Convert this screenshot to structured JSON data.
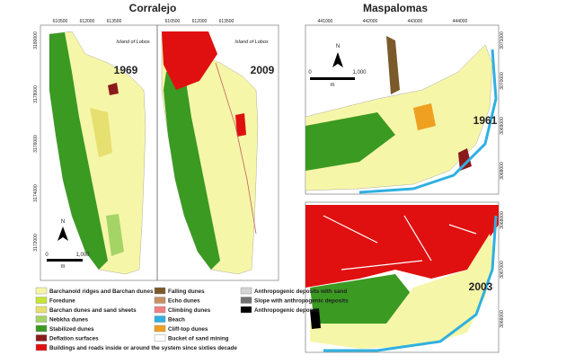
{
  "corralejo": {
    "title": "Corralejo",
    "x_ticks": [
      "610500",
      "612000",
      "613500"
    ],
    "y_ticks": [
      "3180000",
      "3178000",
      "3176000",
      "3174000",
      "3172000"
    ],
    "island_label": "Island of Lobos",
    "years": [
      "1969",
      "2009"
    ],
    "scale": {
      "start": "0",
      "end": "1,000",
      "unit": "m"
    },
    "north": "N"
  },
  "maspalomas": {
    "title": "Maspalomas",
    "x_ticks": [
      "441000",
      "442000",
      "443000",
      "444000"
    ],
    "y_ticks_top": [
      "3071000",
      "3070000",
      "3069000",
      "3068000"
    ],
    "y_ticks_bottom": [
      "3068000",
      "3067000",
      "3066000"
    ],
    "years": [
      "1961",
      "2003"
    ],
    "scale": {
      "start": "0",
      "end": "1,000",
      "unit": "m"
    },
    "north": "N"
  },
  "legend": [
    {
      "label": "Barchanoid ridges and Barchan dunes",
      "color": "#f6f6a8"
    },
    {
      "label": "Foredune",
      "color": "#c6e634"
    },
    {
      "label": "Barchan dunes and sand sheets",
      "color": "#e6e070"
    },
    {
      "label": "Nebkha dunes",
      "color": "#a4d466"
    },
    {
      "label": "Stabilized dunes",
      "color": "#3a9a22"
    },
    {
      "label": "Deflation surfaces",
      "color": "#8b1a1a"
    },
    {
      "label": "Buildings and roads inside or around the system since sixties decade",
      "color": "#e01010"
    },
    {
      "label": "Falling dunes",
      "color": "#7a5a2a"
    },
    {
      "label": "Echo dunes",
      "color": "#c89060"
    },
    {
      "label": "Climbing dunes",
      "color": "#f08080"
    },
    {
      "label": "Beach",
      "color": "#30b0e0"
    },
    {
      "label": "Cliff-top dunes",
      "color": "#f0a020"
    },
    {
      "label": "Bucket of sand mining",
      "color": "#ffffff"
    },
    {
      "label": "Anthropogenic deposits with sand",
      "color": "#d4d4d4"
    },
    {
      "label": "Slope with anthropogenic deposits",
      "color": "#707070"
    },
    {
      "label": "Anthropogenic deposits",
      "color": "#000000"
    }
  ]
}
